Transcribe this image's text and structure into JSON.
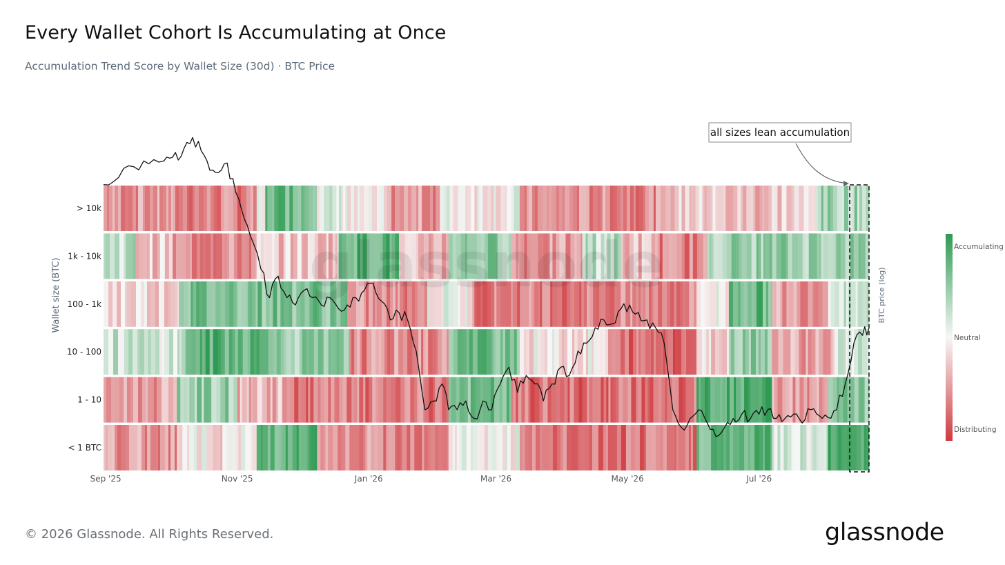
{
  "header": {
    "title": "Every Wallet Cohort Is Accumulating at Once",
    "subtitle": "Accumulation Trend Score by Wallet Size (30d) · BTC Price"
  },
  "footer": {
    "copyright": "© 2026 Glassnode. All Rights Reserved.",
    "brand": "glassnode"
  },
  "watermark": "glassnode",
  "colors": {
    "accumulating": "#2e9a52",
    "neutral": "#f7f7f7",
    "distributing": "#cf3a3f",
    "price_line": "#111111",
    "annotation_border": "#888888"
  },
  "chart_data": {
    "type": "heatmap",
    "title": "Every Wallet Cohort Is Accumulating at Once",
    "subtitle": "Accumulation Trend Score by Wallet Size (30d) · BTC Price",
    "ylabel": "Wallet size (BTC)",
    "y2label": "BTC price (log)",
    "y2_scale": "log",
    "x_tick_labels": [
      "Sep '25",
      "Nov '25",
      "Jan '26",
      "Mar '26",
      "May '26",
      "Jul '26"
    ],
    "rows": [
      "> 10k",
      "1k - 10k",
      "100 - 1k",
      "10 - 100",
      "1 - 10",
      "< 1 BTC"
    ],
    "legend": {
      "placement": "right",
      "top_label": "Accumulating",
      "mid_label": "Neutral",
      "bottom_label": "Distributing"
    },
    "annotation": "all sizes lean accumulation",
    "score_range": [
      -1,
      1
    ],
    "segments": [
      [
        {
          "from": "2025-08-31",
          "to": "2025-10-02",
          "score": -0.5
        },
        {
          "from": "2025-10-02",
          "to": "2025-11-10",
          "score": -0.6
        },
        {
          "from": "2025-11-10",
          "to": "2025-11-14",
          "score": -0.1
        },
        {
          "from": "2025-11-14",
          "to": "2025-12-08",
          "score": 0.7
        },
        {
          "from": "2025-12-08",
          "to": "2025-12-22",
          "score": 0.1
        },
        {
          "from": "2025-12-22",
          "to": "2026-01-08",
          "score": -0.15
        },
        {
          "from": "2026-01-08",
          "to": "2026-02-03",
          "score": -0.5
        },
        {
          "from": "2026-02-03",
          "to": "2026-03-12",
          "score": 0.0
        },
        {
          "from": "2026-03-12",
          "to": "2026-05-20",
          "score": -0.55
        },
        {
          "from": "2026-05-20",
          "to": "2026-06-12",
          "score": -0.2
        },
        {
          "from": "2026-06-12",
          "to": "2026-07-07",
          "score": -0.3
        },
        {
          "from": "2026-07-07",
          "to": "2026-07-27",
          "score": -0.2
        },
        {
          "from": "2026-07-27",
          "to": "2026-08-21",
          "score": 0.4
        }
      ],
      [
        {
          "from": "2025-08-31",
          "to": "2025-09-15",
          "score": 0.3
        },
        {
          "from": "2025-09-15",
          "to": "2025-10-02",
          "score": -0.25
        },
        {
          "from": "2025-10-02",
          "to": "2025-11-10",
          "score": -0.55
        },
        {
          "from": "2025-11-10",
          "to": "2025-12-18",
          "score": -0.25
        },
        {
          "from": "2025-12-18",
          "to": "2026-01-15",
          "score": 0.75
        },
        {
          "from": "2026-01-15",
          "to": "2026-02-07",
          "score": -0.35
        },
        {
          "from": "2026-02-07",
          "to": "2026-03-08",
          "score": 0.5
        },
        {
          "from": "2026-03-08",
          "to": "2026-04-10",
          "score": -0.5
        },
        {
          "from": "2026-04-10",
          "to": "2026-04-28",
          "score": 0.3
        },
        {
          "from": "2026-04-28",
          "to": "2026-05-15",
          "score": -0.3
        },
        {
          "from": "2026-05-15",
          "to": "2026-06-07",
          "score": -0.6
        },
        {
          "from": "2026-06-07",
          "to": "2026-08-21",
          "score": 0.45
        }
      ],
      [
        {
          "from": "2025-08-31",
          "to": "2025-10-05",
          "score": -0.15
        },
        {
          "from": "2025-10-05",
          "to": "2025-12-22",
          "score": 0.6
        },
        {
          "from": "2025-12-22",
          "to": "2026-01-28",
          "score": -0.55
        },
        {
          "from": "2026-01-28",
          "to": "2026-02-18",
          "score": 0.0
        },
        {
          "from": "2026-02-18",
          "to": "2026-06-02",
          "score": -0.6
        },
        {
          "from": "2026-06-02",
          "to": "2026-06-17",
          "score": 0.0
        },
        {
          "from": "2026-06-17",
          "to": "2026-07-07",
          "score": 0.7
        },
        {
          "from": "2026-07-07",
          "to": "2026-08-02",
          "score": -0.45
        },
        {
          "from": "2026-08-02",
          "to": "2026-08-21",
          "score": 0.3
        }
      ],
      [
        {
          "from": "2025-08-31",
          "to": "2025-10-08",
          "score": 0.2
        },
        {
          "from": "2025-10-08",
          "to": "2025-11-18",
          "score": 0.75
        },
        {
          "from": "2025-11-18",
          "to": "2025-12-23",
          "score": 0.45
        },
        {
          "from": "2025-12-23",
          "to": "2026-02-07",
          "score": -0.55
        },
        {
          "from": "2026-02-07",
          "to": "2026-03-12",
          "score": 0.65
        },
        {
          "from": "2026-03-12",
          "to": "2026-04-22",
          "score": -0.1
        },
        {
          "from": "2026-04-22",
          "to": "2026-06-02",
          "score": -0.7
        },
        {
          "from": "2026-06-02",
          "to": "2026-06-17",
          "score": -0.15
        },
        {
          "from": "2026-06-17",
          "to": "2026-07-07",
          "score": 0.55
        },
        {
          "from": "2026-07-07",
          "to": "2026-08-05",
          "score": -0.4
        },
        {
          "from": "2026-08-05",
          "to": "2026-08-21",
          "score": 0.12
        }
      ],
      [
        {
          "from": "2025-08-31",
          "to": "2025-10-04",
          "score": -0.45
        },
        {
          "from": "2025-10-04",
          "to": "2025-11-01",
          "score": 0.45
        },
        {
          "from": "2025-11-01",
          "to": "2025-11-22",
          "score": -0.35
        },
        {
          "from": "2025-11-22",
          "to": "2026-02-07",
          "score": -0.65
        },
        {
          "from": "2026-02-07",
          "to": "2026-03-08",
          "score": 0.6
        },
        {
          "from": "2026-03-08",
          "to": "2026-06-02",
          "score": -0.7
        },
        {
          "from": "2026-06-02",
          "to": "2026-07-07",
          "score": 0.8
        },
        {
          "from": "2026-07-07",
          "to": "2026-08-02",
          "score": -0.45
        },
        {
          "from": "2026-08-02",
          "to": "2026-08-21",
          "score": 0.5
        }
      ],
      [
        {
          "from": "2025-08-31",
          "to": "2025-10-04",
          "score": -0.5
        },
        {
          "from": "2025-10-04",
          "to": "2025-11-10",
          "score": -0.1
        },
        {
          "from": "2025-11-10",
          "to": "2025-12-08",
          "score": 0.75
        },
        {
          "from": "2025-12-08",
          "to": "2026-02-07",
          "score": -0.55
        },
        {
          "from": "2026-02-07",
          "to": "2026-03-12",
          "score": 0.0
        },
        {
          "from": "2026-03-12",
          "to": "2026-06-02",
          "score": -0.7
        },
        {
          "from": "2026-06-02",
          "to": "2026-07-07",
          "score": 0.7
        },
        {
          "from": "2026-07-07",
          "to": "2026-08-02",
          "score": 0.2
        },
        {
          "from": "2026-08-02",
          "to": "2026-08-21",
          "score": 0.9
        }
      ]
    ],
    "price_series_relative": {
      "description": "BTC price shape, log scale, relative units (1.0 = start of period)",
      "dates": [
        "2025-08-31",
        "2025-09-07",
        "2025-09-14",
        "2025-09-21",
        "2025-09-28",
        "2025-10-02",
        "2025-10-06",
        "2025-10-10",
        "2025-10-14",
        "2025-10-18",
        "2025-10-22",
        "2025-10-26",
        "2025-10-30",
        "2025-11-03",
        "2025-11-07",
        "2025-11-12",
        "2025-11-16",
        "2025-11-20",
        "2025-11-24",
        "2025-11-28",
        "2025-12-02",
        "2025-12-06",
        "2025-12-10",
        "2025-12-14",
        "2025-12-18",
        "2025-12-22",
        "2025-12-26",
        "2025-12-30",
        "2026-01-03",
        "2026-01-07",
        "2026-01-11",
        "2026-01-15",
        "2026-01-19",
        "2026-01-23",
        "2026-01-27",
        "2026-01-31",
        "2026-02-04",
        "2026-02-07",
        "2026-02-11",
        "2026-02-15",
        "2026-02-19",
        "2026-02-23",
        "2026-02-27",
        "2026-03-03",
        "2026-03-07",
        "2026-03-11",
        "2026-03-15",
        "2026-03-19",
        "2026-03-23",
        "2026-03-27",
        "2026-03-31",
        "2026-04-04",
        "2026-04-08",
        "2026-04-12",
        "2026-04-16",
        "2026-04-20",
        "2026-04-24",
        "2026-04-28",
        "2026-05-02",
        "2026-05-06",
        "2026-05-10",
        "2026-05-14",
        "2026-05-18",
        "2026-05-22",
        "2026-05-26",
        "2026-05-30",
        "2026-06-03",
        "2026-06-07",
        "2026-06-11",
        "2026-06-15",
        "2026-06-19",
        "2026-06-23",
        "2026-06-27",
        "2026-07-01",
        "2026-07-05",
        "2026-07-09",
        "2026-07-13",
        "2026-07-17",
        "2026-07-21",
        "2026-07-25",
        "2026-07-29",
        "2026-08-02",
        "2026-08-06",
        "2026-08-10",
        "2026-08-14",
        "2026-08-18",
        "2026-08-21"
      ],
      "values": [
        1.0,
        1.012,
        1.03,
        1.035,
        1.04,
        1.046,
        1.048,
        1.07,
        1.074,
        1.04,
        1.02,
        1.035,
        1.01,
        0.96,
        0.92,
        0.87,
        0.83,
        0.86,
        0.83,
        0.82,
        0.84,
        0.83,
        0.82,
        0.83,
        0.815,
        0.82,
        0.83,
        0.84,
        0.85,
        0.825,
        0.8,
        0.81,
        0.8,
        0.76,
        0.69,
        0.7,
        0.72,
        0.69,
        0.69,
        0.7,
        0.68,
        0.7,
        0.69,
        0.72,
        0.74,
        0.71,
        0.73,
        0.72,
        0.7,
        0.72,
        0.74,
        0.73,
        0.76,
        0.77,
        0.79,
        0.8,
        0.795,
        0.815,
        0.82,
        0.81,
        0.8,
        0.79,
        0.77,
        0.69,
        0.67,
        0.68,
        0.69,
        0.675,
        0.66,
        0.67,
        0.68,
        0.685,
        0.68,
        0.685,
        0.69,
        0.68,
        0.68,
        0.685,
        0.675,
        0.69,
        0.683,
        0.681,
        0.69,
        0.72,
        0.77,
        0.78,
        0.79
      ]
    }
  }
}
